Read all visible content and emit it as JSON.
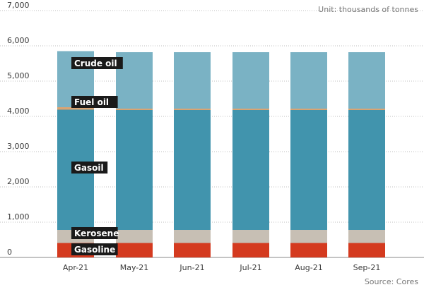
{
  "chart_data": {
    "type": "bar",
    "stacked": true,
    "categories": [
      "Apr-21",
      "May-21",
      "Jun-21",
      "Jul-21",
      "Aug-21",
      "Sep-21"
    ],
    "series": [
      {
        "name": "Gasoline",
        "color": "#d43a1f",
        "values": [
          410,
          410,
          410,
          410,
          410,
          410
        ]
      },
      {
        "name": "Kerosene",
        "color": "#c7bfb4",
        "values": [
          370,
          370,
          370,
          370,
          370,
          370
        ]
      },
      {
        "name": "Gasoil",
        "color": "#4194ad",
        "values": [
          3410,
          3400,
          3400,
          3400,
          3400,
          3400
        ]
      },
      {
        "name": "Fuel oil",
        "color": "#d9a473",
        "values": [
          70,
          40,
          40,
          40,
          40,
          40
        ]
      },
      {
        "name": "Crude oil",
        "color": "#7ab2c4",
        "values": [
          1590,
          1600,
          1600,
          1600,
          1600,
          1600
        ]
      }
    ],
    "yticks": [
      "0",
      "1,000",
      "2,000",
      "3,000",
      "4,000",
      "5,000",
      "6,000",
      "7,000"
    ],
    "ylim": [
      0,
      7000
    ],
    "unit_note": "Unit: thousands of tonnes",
    "source": "Source: Cores",
    "grid": true,
    "legend_placement": "inline labels on first bar"
  }
}
